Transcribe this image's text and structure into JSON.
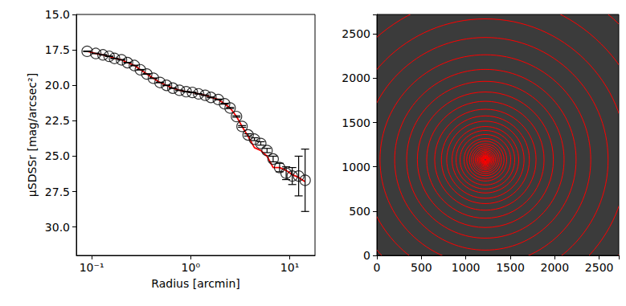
{
  "chart_data": [
    {
      "type": "scatter",
      "xlabel": "Radius [arcmin]",
      "ylabel": "μSDSSr [mag/arcsec²]",
      "log": "x",
      "xlim": [
        0.07,
        18
      ],
      "xticks": [
        {
          "value": 0.1,
          "label": "10⁻¹"
        },
        {
          "value": 1,
          "label": "10⁰"
        },
        {
          "value": 10,
          "label": "10¹"
        }
      ],
      "ylim": [
        15,
        32
      ],
      "yticks": [
        {
          "value": 15,
          "label": "15.0"
        },
        17.5,
        {
          "value": 20,
          "label": "20.0"
        },
        22.5,
        {
          "value": 25,
          "label": "25.0"
        },
        27.5,
        {
          "value": 30,
          "label": "30.0"
        }
      ],
      "x": [
        0.09,
        0.11,
        0.13,
        0.15,
        0.17,
        0.2,
        0.23,
        0.27,
        0.31,
        0.36,
        0.42,
        0.49,
        0.57,
        0.66,
        0.77,
        0.9,
        1.04,
        1.2,
        1.4,
        1.6,
        1.9,
        2.2,
        2.5,
        2.9,
        3.3,
        3.8,
        4.4,
        5.1,
        5.9,
        6.8,
        7.9,
        9.2,
        10.6,
        12.3,
        14.3
      ],
      "series": [
        {
          "type": "scatter",
          "color": "#000000",
          "marker": "circle",
          "values": [
            17.6,
            17.75,
            17.85,
            17.95,
            18.1,
            18.2,
            18.4,
            18.6,
            18.9,
            19.2,
            19.5,
            19.8,
            20.0,
            20.2,
            20.35,
            20.45,
            20.5,
            20.6,
            20.7,
            20.85,
            21.0,
            21.3,
            21.6,
            22.2,
            22.9,
            23.5,
            23.8,
            24.1,
            24.6,
            25.2,
            25.8,
            26.2,
            26.4,
            26.4,
            26.7
          ],
          "errors": [
            0.02,
            0.02,
            0.02,
            0.02,
            0.02,
            0.02,
            0.02,
            0.02,
            0.02,
            0.02,
            0.02,
            0.02,
            0.02,
            0.02,
            0.02,
            0.02,
            0.02,
            0.02,
            0.02,
            0.03,
            0.03,
            0.03,
            0.04,
            0.05,
            0.06,
            0.08,
            0.1,
            0.12,
            0.15,
            0.2,
            0.3,
            0.45,
            0.6,
            1.4,
            2.2
          ]
        },
        {
          "type": "line",
          "color": "#ff0000",
          "line_style": "solid",
          "values": [
            17.6,
            17.75,
            17.85,
            17.95,
            18.1,
            18.2,
            18.4,
            18.6,
            18.9,
            19.2,
            19.5,
            19.8,
            20.0,
            20.2,
            20.35,
            20.45,
            20.5,
            20.6,
            20.7,
            20.85,
            21.0,
            21.3,
            21.6,
            22.2,
            22.9,
            23.6,
            24.4,
            24.6,
            25.0,
            25.8,
            25.8,
            26.0,
            26.3,
            26.5,
            26.8
          ]
        }
      ]
    },
    {
      "type": "ellipses",
      "color": "#ff0000",
      "xlim": [
        0,
        2720
      ],
      "xticks": [
        0,
        500,
        1000,
        1500,
        2000,
        2500
      ],
      "ylim": [
        0,
        2720
      ],
      "yticks": [
        0,
        500,
        1000,
        1500,
        2000,
        2500
      ],
      "center": [
        1220,
        1080
      ],
      "radii": [
        13,
        16,
        19,
        22,
        25,
        30,
        35,
        40,
        46,
        54,
        63,
        73,
        85,
        99,
        115,
        135,
        156,
        180,
        210,
        240,
        285,
        330,
        375,
        435,
        495,
        570,
        660,
        765,
        885,
        1020,
        1185,
        1380,
        1590,
        1845,
        2145
      ]
    }
  ]
}
